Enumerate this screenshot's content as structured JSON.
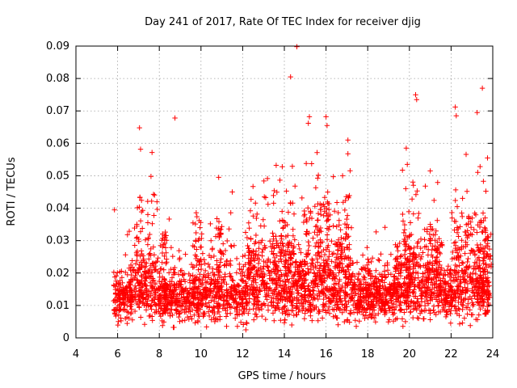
{
  "chart_data": {
    "type": "scatter",
    "title": "Day 241 of 2017, Rate Of TEC Index for receiver djig",
    "xlabel": "GPS time / hours",
    "ylabel": "ROTI / TECUs",
    "xlim": [
      4,
      24
    ],
    "ylim": [
      0,
      0.09
    ],
    "x_ticks": [
      4,
      6,
      8,
      10,
      12,
      14,
      16,
      18,
      20,
      22,
      24
    ],
    "x_tick_labels": [
      "4",
      "6",
      "8",
      "10",
      "12",
      "14",
      "16",
      "18",
      "20",
      "22",
      "24"
    ],
    "y_ticks": [
      0,
      0.01,
      0.02,
      0.03,
      0.04,
      0.05,
      0.06,
      0.07,
      0.08,
      0.09
    ],
    "y_tick_labels": [
      "0",
      "0.01",
      "0.02",
      "0.03",
      "0.04",
      "0.05",
      "0.06",
      "0.07",
      "0.08",
      "0.09"
    ],
    "grid": true,
    "marker": "+",
    "color": "#ff0000",
    "data_start_hour": 5.8,
    "data_end_hour": 23.85,
    "typical_range": [
      0.005,
      0.03
    ],
    "notable_points": [
      {
        "x": 5.85,
        "y": 0.0395
      },
      {
        "x": 7.05,
        "y": 0.0648
      },
      {
        "x": 7.1,
        "y": 0.0582
      },
      {
        "x": 7.65,
        "y": 0.0572
      },
      {
        "x": 7.6,
        "y": 0.0498
      },
      {
        "x": 8.75,
        "y": 0.0678
      },
      {
        "x": 10.85,
        "y": 0.0495
      },
      {
        "x": 11.5,
        "y": 0.045
      },
      {
        "x": 13.9,
        "y": 0.0528
      },
      {
        "x": 14.3,
        "y": 0.0805
      },
      {
        "x": 14.6,
        "y": 0.0898
      },
      {
        "x": 15.05,
        "y": 0.0538
      },
      {
        "x": 15.2,
        "y": 0.0682
      },
      {
        "x": 15.15,
        "y": 0.0662
      },
      {
        "x": 16.0,
        "y": 0.0682
      },
      {
        "x": 16.05,
        "y": 0.0655
      },
      {
        "x": 17.05,
        "y": 0.061
      },
      {
        "x": 17.05,
        "y": 0.0568
      },
      {
        "x": 19.85,
        "y": 0.0585
      },
      {
        "x": 19.9,
        "y": 0.0535
      },
      {
        "x": 20.3,
        "y": 0.075
      },
      {
        "x": 20.35,
        "y": 0.0735
      },
      {
        "x": 21.0,
        "y": 0.0515
      },
      {
        "x": 22.2,
        "y": 0.0712
      },
      {
        "x": 22.25,
        "y": 0.0685
      },
      {
        "x": 23.25,
        "y": 0.0695
      },
      {
        "x": 23.5,
        "y": 0.077
      },
      {
        "x": 23.55,
        "y": 0.0483
      },
      {
        "x": 23.75,
        "y": 0.0555
      }
    ]
  }
}
